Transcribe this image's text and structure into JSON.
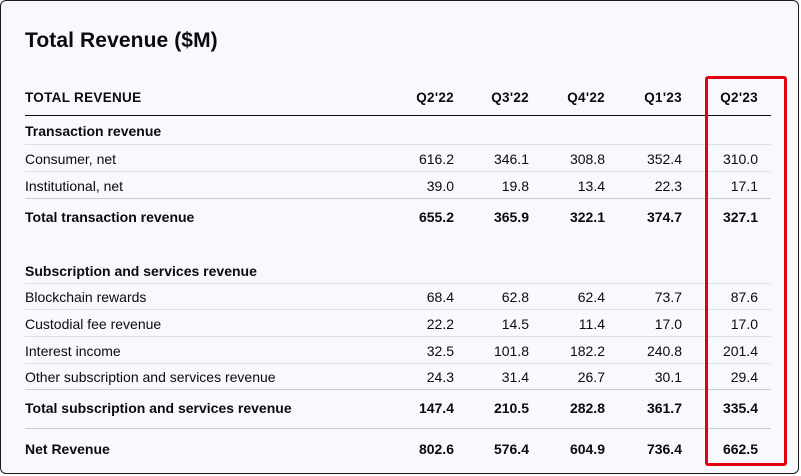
{
  "title": "Total Revenue ($M)",
  "header": {
    "label": "TOTAL REVENUE",
    "columns": [
      "Q2'22",
      "Q3'22",
      "Q4'22",
      "Q1'23",
      "Q2'23"
    ]
  },
  "transaction": {
    "section": "Transaction revenue",
    "rows": [
      {
        "label": "Consumer, net",
        "values": [
          "616.2",
          "346.1",
          "308.8",
          "352.4",
          "310.0"
        ]
      },
      {
        "label": "Institutional, net",
        "values": [
          "39.0",
          "19.8",
          "13.4",
          "22.3",
          "17.1"
        ]
      }
    ],
    "total": {
      "label": "Total transaction revenue",
      "values": [
        "655.2",
        "365.9",
        "322.1",
        "374.7",
        "327.1"
      ]
    }
  },
  "subscription": {
    "section": "Subscription and services revenue",
    "rows": [
      {
        "label": "Blockchain rewards",
        "values": [
          "68.4",
          "62.8",
          "62.4",
          "73.7",
          "87.6"
        ]
      },
      {
        "label": "Custodial fee revenue",
        "values": [
          "22.2",
          "14.5",
          "11.4",
          "17.0",
          "17.0"
        ]
      },
      {
        "label": "Interest income",
        "values": [
          "32.5",
          "101.8",
          "182.2",
          "240.8",
          "201.4"
        ]
      },
      {
        "label": "Other subscription and services revenue",
        "values": [
          "24.3",
          "31.4",
          "26.7",
          "30.1",
          "29.4"
        ]
      }
    ],
    "total": {
      "label": "Total subscription and services revenue",
      "values": [
        "147.4",
        "210.5",
        "282.8",
        "361.7",
        "335.4"
      ]
    }
  },
  "net": {
    "label": "Net Revenue",
    "values": [
      "802.6",
      "576.4",
      "604.9",
      "736.4",
      "662.5"
    ]
  },
  "colors": {
    "highlight": "#e3000f",
    "text": "#0a0b0d",
    "background": "#f7f9fc",
    "divider": "#c9ccd2"
  }
}
